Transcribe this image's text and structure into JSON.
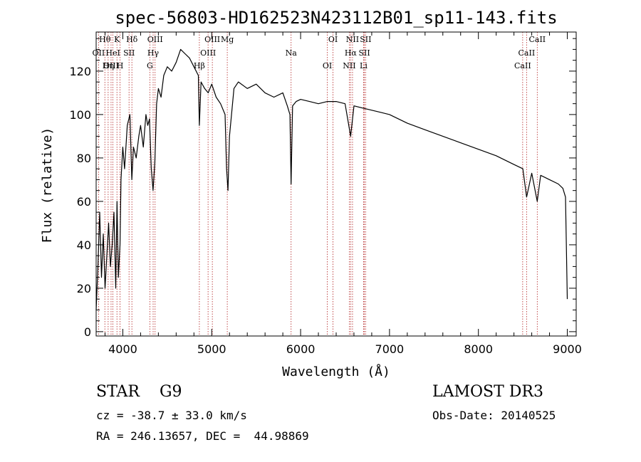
{
  "chart_data": {
    "type": "line",
    "title": "spec-56803-HD162523N423112B01_sp11-143.fits",
    "xlabel": "Wavelength (Å)",
    "ylabel": "Flux (relative)",
    "xlim": [
      3700,
      9100
    ],
    "ylim": [
      -2,
      138
    ],
    "xticks": [
      4000,
      5000,
      6000,
      7000,
      8000,
      9000
    ],
    "yticks": [
      0,
      20,
      40,
      60,
      80,
      100,
      120
    ],
    "grid": false,
    "legend": "none",
    "series": [
      {
        "x": [
          3700,
          3720,
          3740,
          3760,
          3780,
          3800,
          3820,
          3840,
          3860,
          3880,
          3900,
          3920,
          3935,
          3950,
          3968,
          3980,
          4000,
          4020,
          4050,
          4080,
          4101,
          4120,
          4150,
          4180,
          4200,
          4230,
          4260,
          4280,
          4300,
          4320,
          4340,
          4360,
          4380,
          4400,
          4430,
          4460,
          4500,
          4550,
          4600,
          4650,
          4700,
          4750,
          4800,
          4850,
          4861,
          4880,
          4920,
          4960,
          5000,
          5050,
          5100,
          5150,
          5167,
          5183,
          5200,
          5250,
          5300,
          5400,
          5500,
          5600,
          5700,
          5800,
          5850,
          5880,
          5893,
          5910,
          5950,
          6000,
          6100,
          6200,
          6300,
          6400,
          6500,
          6563,
          6600,
          6700,
          6800,
          6900,
          7000,
          7200,
          7400,
          7600,
          7800,
          8000,
          8200,
          8400,
          8500,
          8542,
          8600,
          8662,
          8700,
          8800,
          8900,
          8950,
          8980,
          9000
        ],
        "values": [
          10,
          30,
          55,
          25,
          45,
          20,
          35,
          50,
          30,
          40,
          55,
          20,
          60,
          25,
          40,
          70,
          85,
          75,
          95,
          100,
          70,
          85,
          80,
          90,
          95,
          85,
          100,
          95,
          98,
          75,
          65,
          78,
          105,
          112,
          108,
          118,
          122,
          120,
          124,
          130,
          128,
          126,
          122,
          118,
          95,
          115,
          112,
          110,
          114,
          108,
          105,
          100,
          75,
          65,
          90,
          112,
          115,
          112,
          114,
          110,
          108,
          110,
          104,
          100,
          68,
          104,
          106,
          107,
          106,
          105,
          106,
          106,
          105,
          90,
          104,
          103,
          102,
          101,
          100,
          96,
          93,
          90,
          87,
          84,
          81,
          77,
          75,
          62,
          73,
          60,
          72,
          70,
          68,
          66,
          62,
          15
        ]
      }
    ],
    "lines": [
      {
        "label": "Hθ",
        "x": 3798
      },
      {
        "label": "OII",
        "x": 3727
      },
      {
        "label": "OIII",
        "x": 3868
      },
      {
        "label": "K",
        "x": 3934
      },
      {
        "label": "HeI",
        "x": 3889
      },
      {
        "label": "Hη",
        "x": 3835
      },
      {
        "label": "Hδ",
        "x": 4102
      },
      {
        "label": "SII",
        "x": 4070
      },
      {
        "label": "H",
        "x": 3969
      },
      {
        "label": "OIII",
        "x": 4363
      },
      {
        "label": "Hγ",
        "x": 4341
      },
      {
        "label": "G",
        "x": 4304
      },
      {
        "label": "OIII",
        "x": 5007
      },
      {
        "label": "OIII",
        "x": 4959
      },
      {
        "label": "Hβ",
        "x": 4861
      },
      {
        "label": "Mg",
        "x": 5175
      },
      {
        "label": "Na",
        "x": 5893
      },
      {
        "label": "OI",
        "x": 6300
      },
      {
        "label": "OI",
        "x": 6364
      },
      {
        "label": "Hα",
        "x": 6563
      },
      {
        "label": "NII",
        "x": 6548
      },
      {
        "label": "NII",
        "x": 6584
      },
      {
        "label": "SII",
        "x": 6717
      },
      {
        "label": "Li",
        "x": 6708
      },
      {
        "label": "SII",
        "x": 6731
      },
      {
        "label": "CaII",
        "x": 8542
      },
      {
        "label": "CaII",
        "x": 8498
      },
      {
        "label": "CaII",
        "x": 8662
      }
    ]
  },
  "info": {
    "class": "STAR    G9",
    "survey": "LAMOST DR3",
    "cz": "cz = -38.7 ± 33.0 km/s",
    "obs_date": "Obs-Date: 20140525",
    "coords": "RA = 246.13657, DEC =  44.98869"
  },
  "colors": {
    "spectrum": "#000000",
    "line_marker": "#b22222",
    "axes": "#000000",
    "background": "#ffffff"
  }
}
